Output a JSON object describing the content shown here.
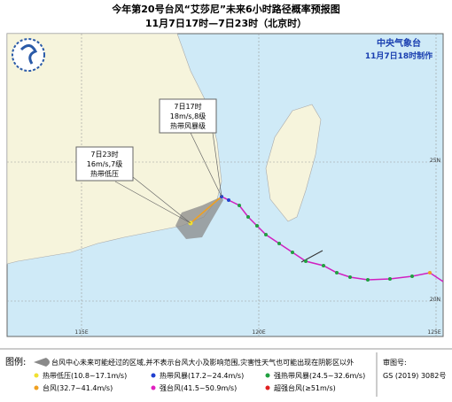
{
  "header": {
    "title": "今年第20号台风“艾莎尼”未来6小时路径概率预报图",
    "subtitle": "11月7日17时—7日23时（北京时）",
    "agency": "中央气象台",
    "made": "11月7日18时制作"
  },
  "callouts": [
    {
      "time": "7日17时",
      "wind": "18m/s,8级",
      "level": "热带风暴级"
    },
    {
      "time": "7日23时",
      "wind": "16m/s,7级",
      "level": "热带低压"
    }
  ],
  "axes": {
    "lon": [
      "115E",
      "120E",
      "125E"
    ],
    "lat": [
      "25N",
      "20N"
    ]
  },
  "legend": {
    "title": "图例:",
    "cone": "台风中心未来可能经过的区域,并不表示台风大小及影响范围,灾害性天气也可能出现在阴影区以外",
    "items": [
      "热带低压(10.8~17.1m/s)",
      "热带风暴(17.2~24.4m/s)",
      "强热带风暴(24.5~32.6m/s)",
      "台风(32.7~41.4m/s)",
      "强台风(41.5~50.9m/s)",
      "超强台风(≥51m/s)"
    ]
  },
  "approval": {
    "label": "审图号:",
    "number": "GS (2019) 3082号"
  }
}
